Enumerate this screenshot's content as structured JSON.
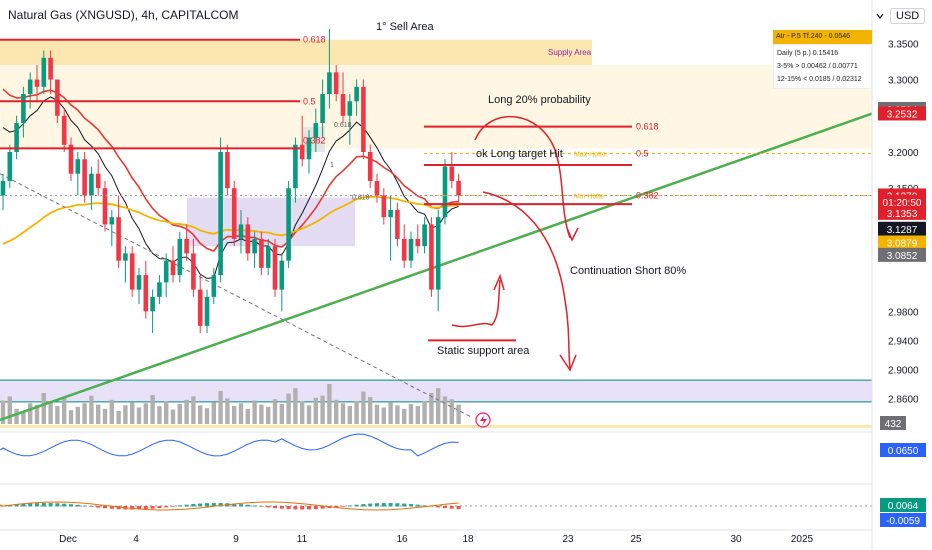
{
  "header": {
    "symbol_title": "Natural Gas (XNGUSD), 4h, CAPITALCOM",
    "currency": "USD"
  },
  "colors": {
    "up": "#089981",
    "down": "#f23645",
    "trend_green": "#4caf50",
    "ema_red": "#e53935",
    "ema_orange": "#f5b301",
    "supply_fill": "#fde7b0",
    "support_fill": "#ddd6f3",
    "annotation_red": "#e0202a"
  },
  "indicator_panel": {
    "title": "Atr - P.5 Tf.240 - 0.0546",
    "rows": [
      {
        "label": "Daily (5 p.)",
        "value": "0.15416"
      },
      {
        "label": "3-5% >",
        "value": "0.00462 / 0.00771"
      },
      {
        "label": "12-15% <",
        "value": "0.0185 / 0.02312"
      }
    ]
  },
  "chart_data": {
    "type": "candlestick",
    "title": "Natural Gas (XNGUSD), 4h, CAPITALCOM",
    "ylim": [
      2.83,
      3.385
    ],
    "y_ticks": [
      3.35,
      3.3,
      3.2,
      3.15,
      2.98,
      2.94,
      2.9,
      2.86
    ],
    "y_tick_labels": [
      "3.3500",
      "3.3000",
      "3.2000",
      "3.1500",
      "2.9800",
      "2.9400",
      "2.9000",
      "2.8600"
    ],
    "x_ticks": [
      "Dec",
      "4",
      "9",
      "11",
      "16",
      "18",
      "23",
      "25",
      "30",
      "2025"
    ],
    "price_labels": [
      {
        "text": "3.2594",
        "price": 3.2594,
        "bg": "#6e6e73"
      },
      {
        "text": "3.2532",
        "price": 3.2532,
        "bg": "#e0202a"
      },
      {
        "text": "3.1370",
        "price": 3.14,
        "bg": "#e0202a"
      },
      {
        "text": "01:20:50",
        "price": 3.131,
        "bg": "#e0202a"
      },
      {
        "text": "3.1353",
        "price": 3.116,
        "bg": "#e0202a"
      },
      {
        "text": "3.1287",
        "price": 3.094,
        "bg": "#131722"
      },
      {
        "text": "3.0879",
        "price": 3.075,
        "bg": "#f5b301"
      },
      {
        "text": "3.0852",
        "price": 3.058,
        "bg": "#6e6e73"
      }
    ],
    "candles": [
      [
        3.14,
        3.17,
        3.12,
        3.16
      ],
      [
        3.16,
        3.21,
        3.15,
        3.2
      ],
      [
        3.2,
        3.25,
        3.19,
        3.24
      ],
      [
        3.24,
        3.29,
        3.22,
        3.28
      ],
      [
        3.28,
        3.31,
        3.26,
        3.3
      ],
      [
        3.3,
        3.32,
        3.27,
        3.29
      ],
      [
        3.29,
        3.34,
        3.28,
        3.33
      ],
      [
        3.33,
        3.34,
        3.28,
        3.3
      ],
      [
        3.3,
        3.3,
        3.24,
        3.25
      ],
      [
        3.25,
        3.26,
        3.2,
        3.21
      ],
      [
        3.21,
        3.22,
        3.16,
        3.17
      ],
      [
        3.17,
        3.2,
        3.14,
        3.19
      ],
      [
        3.19,
        3.2,
        3.13,
        3.14
      ],
      [
        3.14,
        3.18,
        3.12,
        3.17
      ],
      [
        3.17,
        3.19,
        3.14,
        3.15
      ],
      [
        3.15,
        3.16,
        3.09,
        3.1
      ],
      [
        3.1,
        3.12,
        3.07,
        3.11
      ],
      [
        3.11,
        3.14,
        3.04,
        3.05
      ],
      [
        3.05,
        3.07,
        3.02,
        3.06
      ],
      [
        3.06,
        3.07,
        3.0,
        3.01
      ],
      [
        3.01,
        3.04,
        2.99,
        3.03
      ],
      [
        3.03,
        3.05,
        2.97,
        2.98
      ],
      [
        2.98,
        3.01,
        2.95,
        3.0
      ],
      [
        3.0,
        3.03,
        2.99,
        3.02
      ],
      [
        3.02,
        3.06,
        3.0,
        3.05
      ],
      [
        3.05,
        3.07,
        3.02,
        3.03
      ],
      [
        3.03,
        3.09,
        3.02,
        3.08
      ],
      [
        3.08,
        3.1,
        3.05,
        3.06
      ],
      [
        3.06,
        3.08,
        3.0,
        3.01
      ],
      [
        3.01,
        3.03,
        2.95,
        2.96
      ],
      [
        2.96,
        3.01,
        2.95,
        3.0
      ],
      [
        3.0,
        3.04,
        2.99,
        3.03
      ],
      [
        3.03,
        3.22,
        3.02,
        3.2
      ],
      [
        3.2,
        3.21,
        3.14,
        3.15
      ],
      [
        3.15,
        3.16,
        3.07,
        3.08
      ],
      [
        3.08,
        3.12,
        3.06,
        3.1
      ],
      [
        3.1,
        3.11,
        3.05,
        3.06
      ],
      [
        3.06,
        3.09,
        3.04,
        3.08
      ],
      [
        3.08,
        3.09,
        3.03,
        3.04
      ],
      [
        3.04,
        3.08,
        3.03,
        3.07
      ],
      [
        3.07,
        3.08,
        3.0,
        3.01
      ],
      [
        3.01,
        3.06,
        2.98,
        3.05
      ],
      [
        3.05,
        3.16,
        3.04,
        3.15
      ],
      [
        3.15,
        3.22,
        3.13,
        3.21
      ],
      [
        3.21,
        3.25,
        3.18,
        3.19
      ],
      [
        3.19,
        3.23,
        3.17,
        3.22
      ],
      [
        3.22,
        3.26,
        3.2,
        3.24
      ],
      [
        3.24,
        3.3,
        3.22,
        3.28
      ],
      [
        3.28,
        3.37,
        3.26,
        3.31
      ],
      [
        3.31,
        3.32,
        3.27,
        3.28
      ],
      [
        3.28,
        3.31,
        3.24,
        3.25
      ],
      [
        3.25,
        3.28,
        3.21,
        3.27
      ],
      [
        3.27,
        3.3,
        3.25,
        3.29
      ],
      [
        3.29,
        3.3,
        3.19,
        3.2
      ],
      [
        3.2,
        3.21,
        3.15,
        3.16
      ],
      [
        3.16,
        3.17,
        3.13,
        3.14
      ],
      [
        3.14,
        3.15,
        3.1,
        3.11
      ],
      [
        3.11,
        3.14,
        3.05,
        3.12
      ],
      [
        3.12,
        3.13,
        3.07,
        3.08
      ],
      [
        3.08,
        3.1,
        3.04,
        3.05
      ],
      [
        3.05,
        3.09,
        3.04,
        3.08
      ],
      [
        3.08,
        3.1,
        3.06,
        3.07
      ],
      [
        3.07,
        3.11,
        3.06,
        3.1
      ],
      [
        3.1,
        3.11,
        3.0,
        3.01
      ],
      [
        3.01,
        3.12,
        2.98,
        3.11
      ],
      [
        3.11,
        3.19,
        3.1,
        3.18
      ],
      [
        3.18,
        3.2,
        3.15,
        3.16
      ],
      [
        3.16,
        3.17,
        3.13,
        3.14
      ]
    ],
    "volume": [
      34,
      40,
      22,
      18,
      30,
      28,
      45,
      33,
      26,
      38,
      20,
      25,
      30,
      41,
      28,
      22,
      35,
      19,
      27,
      31,
      24,
      30,
      42,
      26,
      33,
      21,
      29,
      35,
      40,
      27,
      23,
      31,
      48,
      37,
      26,
      30,
      22,
      34,
      28,
      25,
      36,
      29,
      44,
      52,
      33,
      27,
      38,
      41,
      58,
      35,
      30,
      26,
      33,
      47,
      39,
      28,
      24,
      31,
      27,
      22,
      29,
      26,
      33,
      45,
      52,
      40,
      36,
      28
    ],
    "trendline": {
      "from": {
        "x": 0,
        "price": 2.83
      },
      "to": {
        "x": 94,
        "price": 3.253
      }
    },
    "projection_x_ticks": {
      "23": 74,
      "25": 79,
      "30": 88,
      "2025": 93
    }
  },
  "annotations": {
    "sell_area": "1° Sell Area",
    "supply_area": "Supply Area",
    "long_prob": "Long 20% probability",
    "ok_long": "ok Long target Hit",
    "continuation": "Continuation Short 80%",
    "support": "Static support area",
    "fib_left_0618": "0.618",
    "fib_left_05": "0.5",
    "fib_left_0382": "0.382",
    "fib_mid_0618": "0.618",
    "fib_mid_1": "1",
    "fib_mid_0": "0.618",
    "fib_right_0618": "0.618",
    "fib_right_05": "0.5",
    "fib_right_0382": "0.382",
    "max_hotte": "Max Hotte",
    "min_hotte": "Min Hotte"
  },
  "volume_panel": {
    "last": "432"
  },
  "rsi_panel": {
    "value": "0.0650"
  },
  "macd_panel": {
    "value_pos": "0.0064",
    "value_neg": "-0.0059"
  }
}
